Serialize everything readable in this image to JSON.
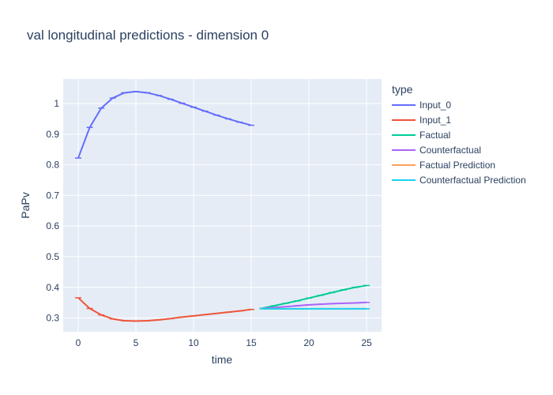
{
  "chart_data": {
    "type": "line",
    "title": "val longitudinal predictions - dimension 0",
    "xlabel": "time",
    "ylabel": "PaPv",
    "xlim": [
      -1.3,
      26.3
    ],
    "ylim": [
      0.255,
      1.08
    ],
    "x_ticks": [
      0,
      5,
      10,
      15,
      20,
      25
    ],
    "x_tick_labels": [
      "0",
      "5",
      "10",
      "15",
      "20",
      "25"
    ],
    "y_ticks": [
      0.3,
      0.4,
      0.5,
      0.6,
      0.7,
      0.8,
      0.9,
      1.0
    ],
    "y_tick_labels": [
      "0.3",
      "0.4",
      "0.5",
      "0.6",
      "0.7",
      "0.8",
      "0.9",
      "1"
    ],
    "grid": true,
    "legend": {
      "title": "type",
      "position": "right"
    },
    "series": [
      {
        "name": "Input_0",
        "color": "#636efa",
        "x": [
          0,
          1,
          2,
          3,
          4,
          5,
          6,
          7,
          8,
          9,
          10,
          11,
          12,
          13,
          14,
          15
        ],
        "y": [
          0.822,
          0.922,
          0.985,
          1.018,
          1.035,
          1.039,
          1.035,
          1.026,
          1.014,
          1.001,
          0.988,
          0.975,
          0.962,
          0.95,
          0.939,
          0.929
        ]
      },
      {
        "name": "Input_1",
        "color": "#ef553b",
        "x": [
          0,
          1,
          2,
          3,
          4,
          5,
          6,
          7,
          8,
          9,
          10,
          11,
          12,
          13,
          14,
          15
        ],
        "y": [
          0.366,
          0.331,
          0.31,
          0.297,
          0.291,
          0.29,
          0.291,
          0.294,
          0.298,
          0.303,
          0.307,
          0.311,
          0.315,
          0.319,
          0.323,
          0.328
        ]
      },
      {
        "name": "Factual",
        "color": "#00cc96",
        "x": [
          16,
          17,
          18,
          19,
          20,
          21,
          22,
          23,
          24,
          25
        ],
        "y": [
          0.332,
          0.34,
          0.348,
          0.356,
          0.365,
          0.374,
          0.383,
          0.392,
          0.4,
          0.406
        ]
      },
      {
        "name": "Counterfactual",
        "color": "#ab63fa",
        "x": [
          16,
          17,
          18,
          19,
          20,
          21,
          22,
          23,
          24,
          25
        ],
        "y": [
          0.331,
          0.334,
          0.337,
          0.34,
          0.343,
          0.345,
          0.347,
          0.348,
          0.349,
          0.351
        ]
      },
      {
        "name": "Factual Prediction",
        "color": "#ffa15a",
        "x": [
          16,
          17,
          18,
          19,
          20,
          21,
          22,
          23,
          24,
          25
        ],
        "y": [
          0.33,
          0.33,
          0.33,
          0.33,
          0.33,
          0.33,
          0.33,
          0.33,
          0.33,
          0.33
        ]
      },
      {
        "name": "Counterfactual Prediction",
        "color": "#19d3f3",
        "x": [
          16,
          17,
          18,
          19,
          20,
          21,
          22,
          23,
          24,
          25
        ],
        "y": [
          0.33,
          0.33,
          0.33,
          0.33,
          0.33,
          0.33,
          0.33,
          0.33,
          0.33,
          0.33
        ]
      }
    ]
  }
}
